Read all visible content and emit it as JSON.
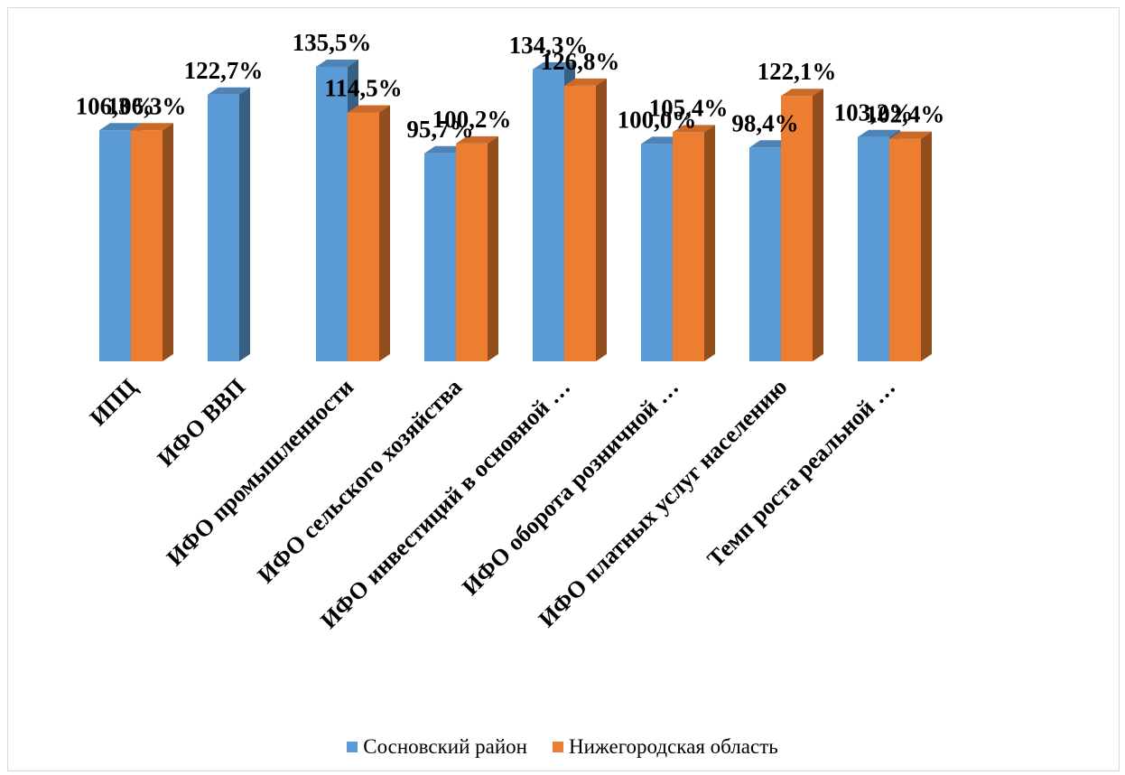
{
  "chart_data": {
    "type": "bar",
    "title": "",
    "xlabel": "",
    "ylabel": "",
    "ylim": [
      0,
      140
    ],
    "grid": false,
    "legend_position": "bottom",
    "categories": [
      "ИПЦ",
      "ИФО ВВП",
      "ИФО промышленности",
      "ИФО сельского хозяйства",
      "ИФО инвестиций  в основной …",
      "ИФО оборота розничной …",
      "ИФО платных услуг населению",
      "Темп роста реальной …"
    ],
    "series": [
      {
        "name": "Сосновский район",
        "color": "#5b9bd5",
        "values": [
          106.3,
          122.7,
          135.5,
          95.7,
          134.3,
          100.0,
          98.4,
          103.2
        ],
        "labels": [
          "106,3%",
          "122,7%",
          "135,5%",
          "95,7%",
          "134,3%",
          "100,0%",
          "98,4%",
          "103,2%"
        ]
      },
      {
        "name": "Нижегородская область",
        "color": "#ed7d31",
        "values": [
          106.3,
          null,
          114.5,
          100.2,
          126.8,
          105.4,
          122.1,
          102.4
        ],
        "labels": [
          "106,3%",
          null,
          "114,5%",
          "100,2%",
          "126,8%",
          "105,4%",
          "122,1%",
          "102,4%"
        ]
      }
    ]
  }
}
